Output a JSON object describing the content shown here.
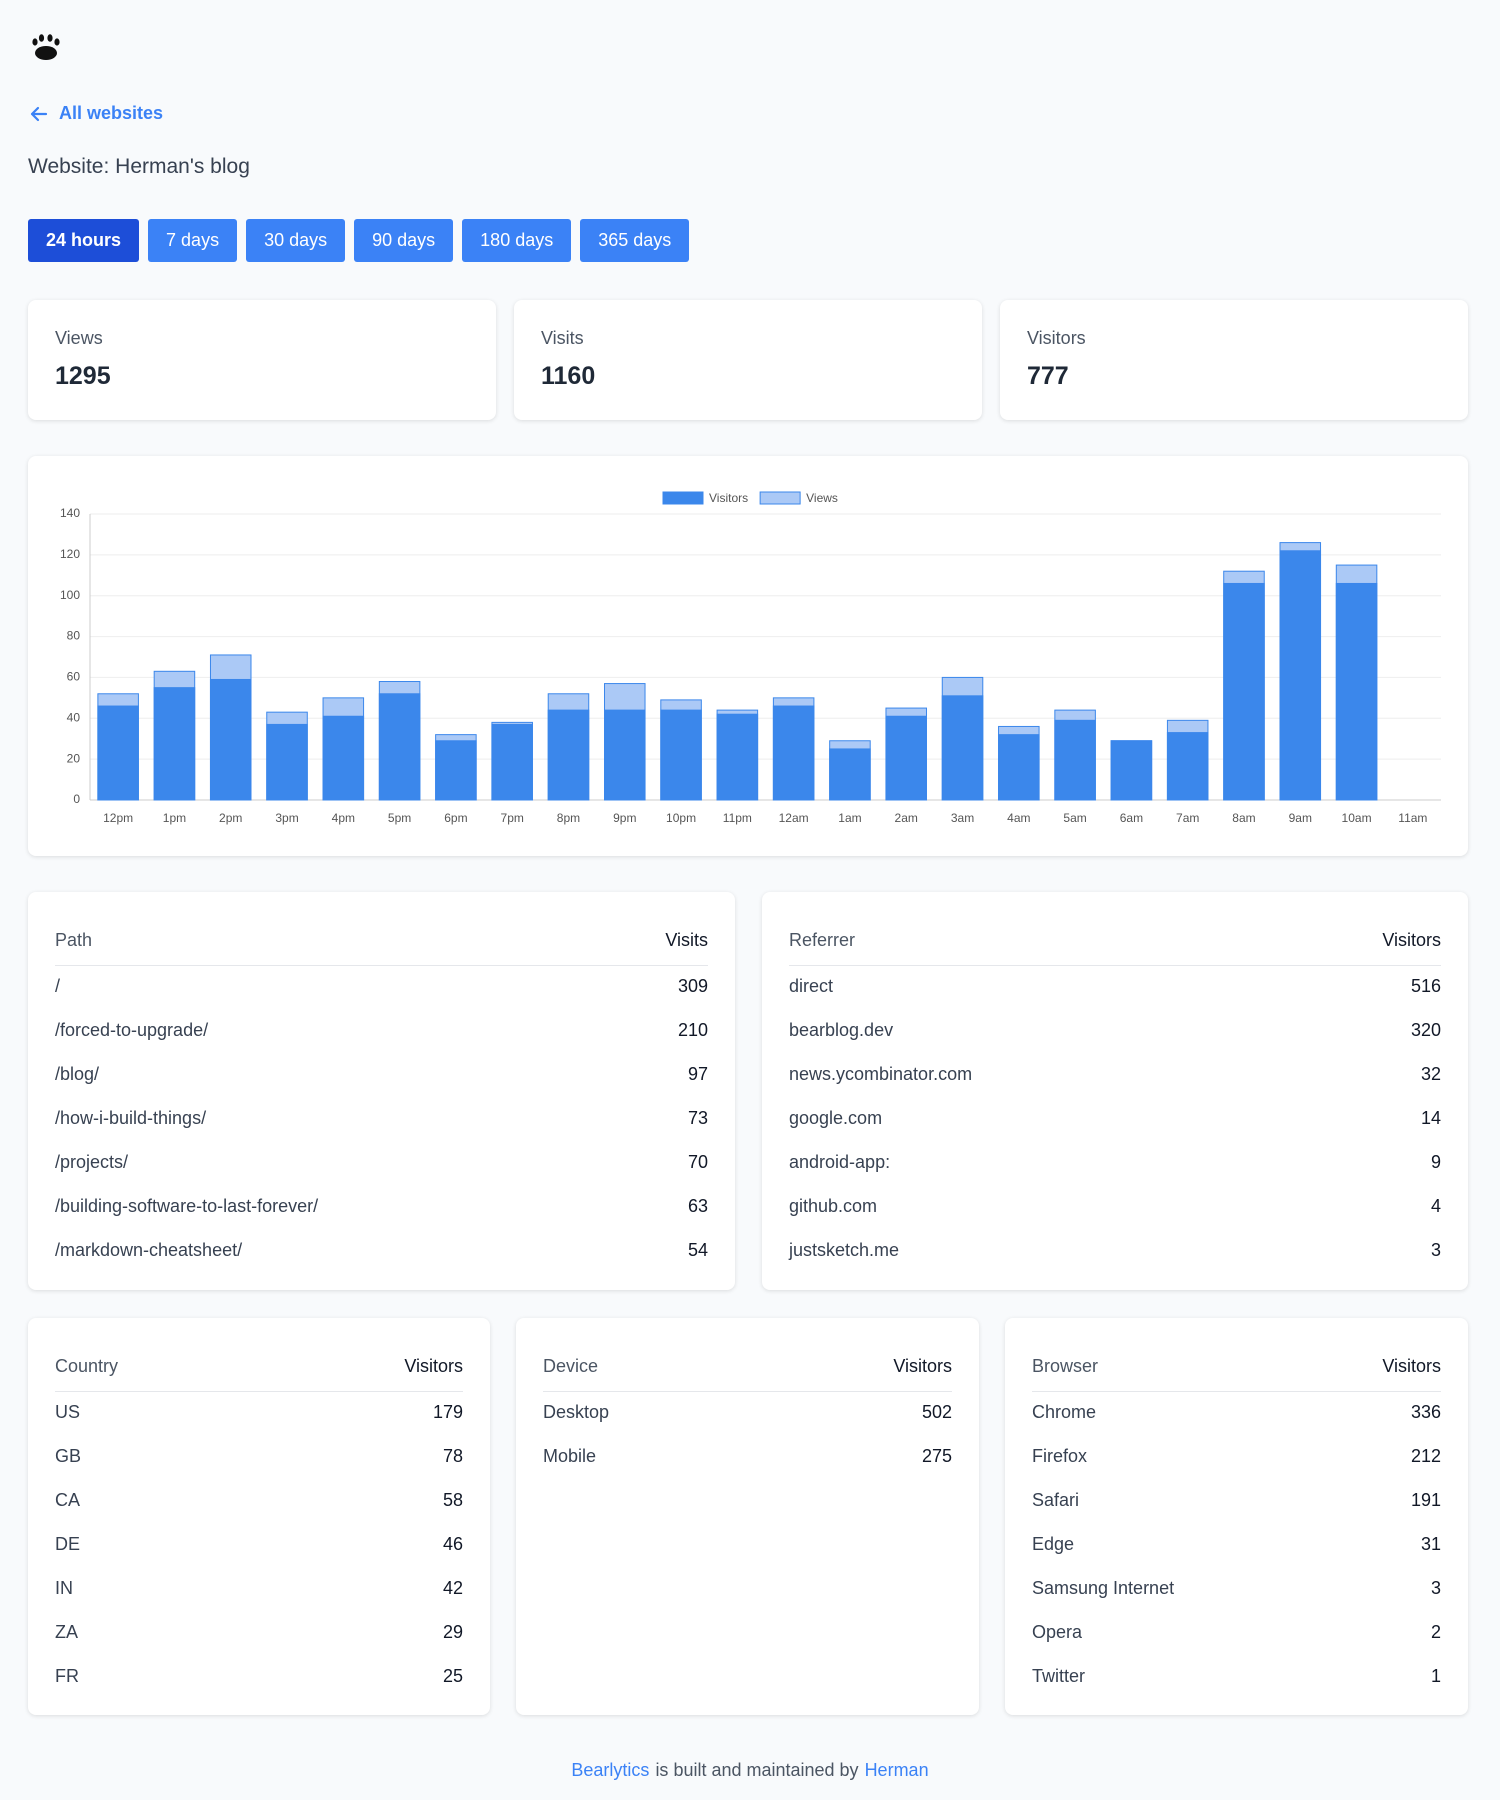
{
  "header": {
    "back_link": "All websites",
    "website_title": "Website: Herman's blog"
  },
  "range_buttons": [
    "24 hours",
    "7 days",
    "30 days",
    "90 days",
    "180 days",
    "365 days"
  ],
  "stats": [
    {
      "label": "Views",
      "value": 1295
    },
    {
      "label": "Visits",
      "value": 1160
    },
    {
      "label": "Visitors",
      "value": 777
    }
  ],
  "chart_data": {
    "type": "bar",
    "categories": [
      "12pm",
      "1pm",
      "2pm",
      "3pm",
      "4pm",
      "5pm",
      "6pm",
      "7pm",
      "8pm",
      "9pm",
      "10pm",
      "11pm",
      "12am",
      "1am",
      "2am",
      "3am",
      "4am",
      "5am",
      "6am",
      "7am",
      "8am",
      "9am",
      "10am",
      "11am"
    ],
    "series": [
      {
        "name": "Visitors",
        "color": "#3b87eb",
        "values": [
          46,
          55,
          59,
          37,
          41,
          52,
          29,
          37,
          44,
          44,
          44,
          42,
          46,
          25,
          41,
          51,
          32,
          39,
          29,
          33,
          106,
          122,
          106,
          0
        ]
      },
      {
        "name": "Views",
        "color": "#abc9f6",
        "values": [
          52,
          63,
          71,
          43,
          50,
          58,
          32,
          38,
          52,
          57,
          49,
          44,
          50,
          29,
          45,
          60,
          36,
          44,
          29,
          39,
          112,
          126,
          115,
          0
        ]
      }
    ],
    "ylim": [
      0,
      140
    ],
    "yticks": [
      0,
      20,
      40,
      60,
      80,
      100,
      120,
      140
    ],
    "grid": true,
    "legend": "top"
  },
  "tables": [
    {
      "columns": [
        "Path",
        "Visits"
      ],
      "rows": [
        [
          "/",
          309
        ],
        [
          "/forced-to-upgrade/",
          210
        ],
        [
          "/blog/",
          97
        ],
        [
          "/how-i-build-things/",
          73
        ],
        [
          "/projects/",
          70
        ],
        [
          "/building-software-to-last-forever/",
          63
        ],
        [
          "/markdown-cheatsheet/",
          54
        ]
      ]
    },
    {
      "columns": [
        "Referrer",
        "Visitors"
      ],
      "rows": [
        [
          "direct",
          516
        ],
        [
          "bearblog.dev",
          320
        ],
        [
          "news.ycombinator.com",
          32
        ],
        [
          "google.com",
          14
        ],
        [
          "android-app:",
          9
        ],
        [
          "github.com",
          4
        ],
        [
          "justsketch.me",
          3
        ]
      ]
    },
    {
      "columns": [
        "Country",
        "Visitors"
      ],
      "rows": [
        [
          "US",
          179
        ],
        [
          "GB",
          78
        ],
        [
          "CA",
          58
        ],
        [
          "DE",
          46
        ],
        [
          "IN",
          42
        ],
        [
          "ZA",
          29
        ],
        [
          "FR",
          25
        ]
      ]
    },
    {
      "columns": [
        "Device",
        "Visitors"
      ],
      "rows": [
        [
          "Desktop",
          502
        ],
        [
          "Mobile",
          275
        ]
      ]
    },
    {
      "columns": [
        "Browser",
        "Visitors"
      ],
      "rows": [
        [
          "Chrome",
          336
        ],
        [
          "Firefox",
          212
        ],
        [
          "Safari",
          191
        ],
        [
          "Edge",
          31
        ],
        [
          "Samsung Internet",
          3
        ],
        [
          "Opera",
          2
        ],
        [
          "Twitter",
          1
        ]
      ]
    }
  ],
  "footer": {
    "brand": "Bearlytics",
    "text": "is built and maintained by",
    "author": "Herman"
  }
}
